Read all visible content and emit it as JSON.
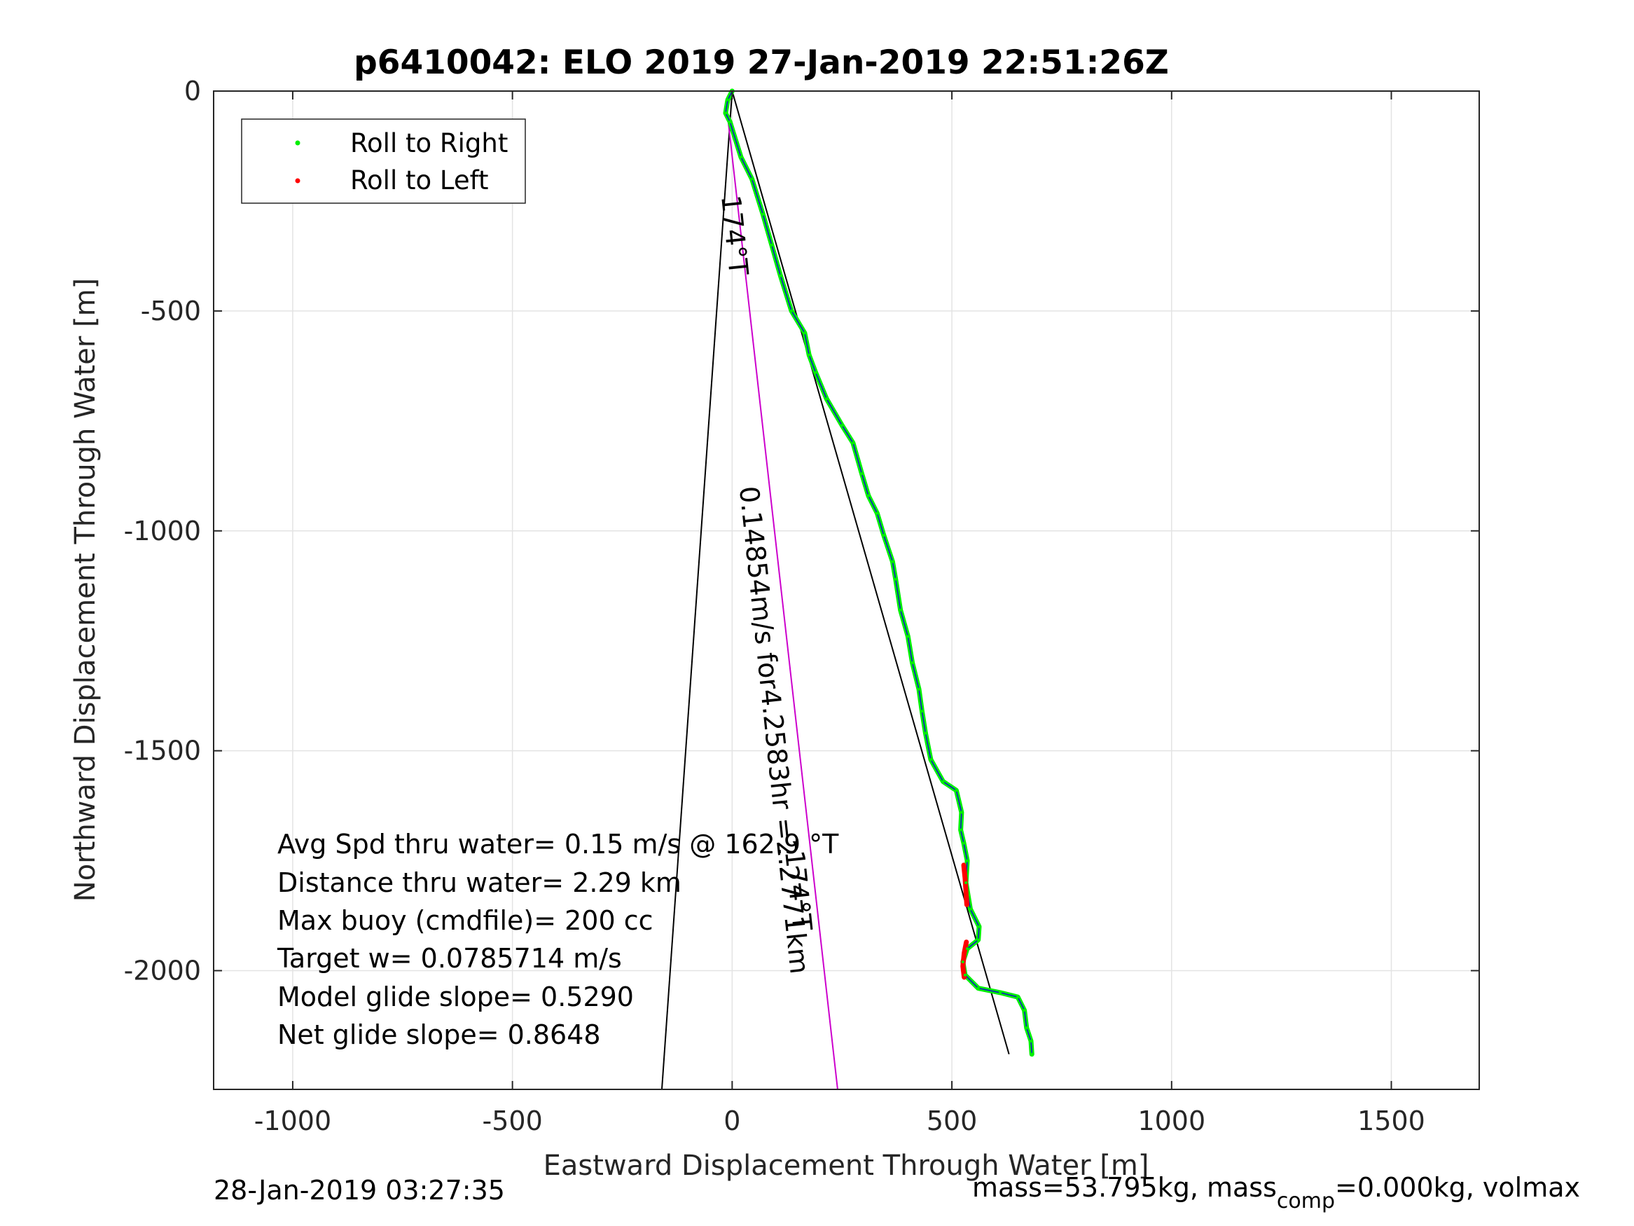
{
  "chart_data": {
    "type": "line",
    "title": "p6410042: ELO 2019 27-Jan-2019 22:51:26Z",
    "xlabel": "Eastward Displacement Through Water [m]",
    "ylabel": "Northward Displacement Through Water [m]",
    "xlim": [
      -1180,
      1700
    ],
    "ylim": [
      -2270,
      0
    ],
    "xticks": [
      -1000,
      -500,
      0,
      500,
      1000,
      1500
    ],
    "yticks": [
      0,
      -500,
      -1000,
      -1500,
      -2000
    ],
    "xtick_labels": [
      "-1000",
      "-500",
      "0",
      "500",
      "1000",
      "1500"
    ],
    "ytick_labels": [
      "0",
      "-500",
      "-1000",
      "-1500",
      "-2000"
    ],
    "grid": true,
    "legend": {
      "position": "top-left",
      "entries": [
        {
          "label": "Roll to Right",
          "color": "#00ee00"
        },
        {
          "label": "Roll to Left",
          "color": "#ff0000"
        }
      ]
    },
    "series": [
      {
        "name": "Roll to Right",
        "color": "#00ee00",
        "points": [
          [
            0,
            0
          ],
          [
            -10,
            -20
          ],
          [
            -15,
            -50
          ],
          [
            -5,
            -70
          ],
          [
            20,
            -150
          ],
          [
            45,
            -200
          ],
          [
            70,
            -280
          ],
          [
            90,
            -350
          ],
          [
            110,
            -420
          ],
          [
            135,
            -500
          ],
          [
            165,
            -550
          ],
          [
            175,
            -600
          ],
          [
            190,
            -640
          ],
          [
            215,
            -700
          ],
          [
            250,
            -760
          ],
          [
            275,
            -800
          ],
          [
            295,
            -870
          ],
          [
            310,
            -920
          ],
          [
            330,
            -960
          ],
          [
            345,
            -1010
          ],
          [
            365,
            -1070
          ],
          [
            372,
            -1110
          ],
          [
            383,
            -1180
          ],
          [
            400,
            -1240
          ],
          [
            410,
            -1300
          ],
          [
            425,
            -1360
          ],
          [
            432,
            -1410
          ],
          [
            440,
            -1460
          ],
          [
            452,
            -1520
          ],
          [
            480,
            -1570
          ],
          [
            510,
            -1590
          ],
          [
            522,
            -1640
          ],
          [
            520,
            -1680
          ],
          [
            527,
            -1710
          ],
          [
            535,
            -1750
          ],
          [
            532,
            -1800
          ],
          [
            542,
            -1860
          ],
          [
            562,
            -1900
          ],
          [
            560,
            -1930
          ],
          [
            535,
            -1950
          ],
          [
            525,
            -1980
          ],
          [
            530,
            -2010
          ],
          [
            560,
            -2040
          ],
          [
            610,
            -2050
          ],
          [
            650,
            -2060
          ],
          [
            665,
            -2090
          ],
          [
            670,
            -2130
          ],
          [
            680,
            -2160
          ],
          [
            682,
            -2190
          ]
        ]
      },
      {
        "name": "Roll to Left",
        "color": "#ff0000",
        "points": [
          [
            527,
            -1760
          ],
          [
            530,
            -1790
          ],
          [
            532,
            -1820
          ],
          [
            534,
            -1850
          ],
          [
            533,
            -1935
          ],
          [
            528,
            -1960
          ],
          [
            525,
            -1990
          ],
          [
            528,
            -2015
          ]
        ]
      }
    ],
    "reference_lines": [
      {
        "points": [
          [
            0,
            0
          ],
          [
            -160,
            -2270
          ]
        ],
        "color": "#000000"
      },
      {
        "points": [
          [
            0,
            0
          ],
          [
            630,
            -2190
          ]
        ],
        "color": "#000000"
      },
      {
        "points": [
          [
            -10,
            -60
          ],
          [
            240,
            -2270
          ]
        ],
        "color": "#cc00cc"
      }
    ],
    "line_annotations": [
      {
        "text": "174°T",
        "x": -15,
        "y": -330,
        "angle": 84
      },
      {
        "text": "0.14854m/s for4.2583hr =2.2771km",
        "x": 75,
        "y": -1455,
        "angle": 84
      },
      {
        "text": "174°T",
        "x": 130,
        "y": -1820,
        "angle": 84
      }
    ],
    "annotations": [
      "Avg Spd thru water=  0.15 m/s @ 162.9 °T",
      "Distance thru water=  2.29 km",
      "Max buoy (cmdfile)= 200 cc",
      "Target w= 0.0785714 m/s",
      "Model glide slope= 0.5290",
      "Net glide slope= 0.8648"
    ]
  },
  "footer": {
    "timestamp": "28-Jan-2019 03:27:35",
    "mass_prefix": "mass=53.795kg, mass",
    "mass_sub": "comp",
    "mass_suffix": "=0.000kg, volmax"
  }
}
